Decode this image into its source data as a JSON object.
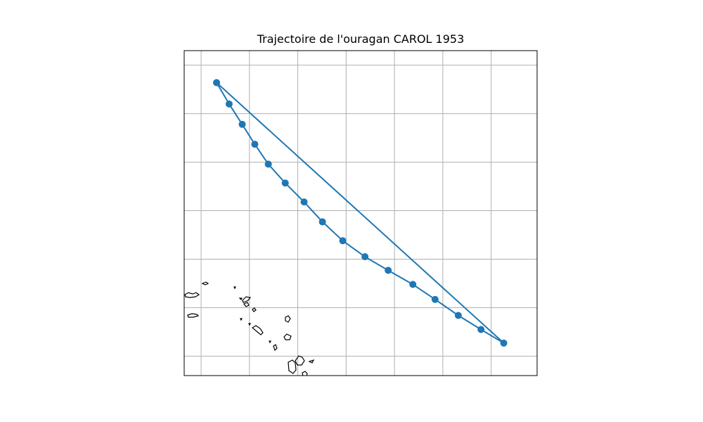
{
  "title": "Trajectoire de l'ouragan CAROL 1953",
  "colors": {
    "track": "#1f77b4",
    "grid": "#b0b0b0",
    "coast": "#000000",
    "frame": "#000000"
  },
  "chart_data": {
    "type": "map-track",
    "grid": true,
    "x_range": [
      -62.1,
      -54.8
    ],
    "y_range": [
      15.6,
      22.3
    ],
    "gridlines_x": [
      -61.75,
      -60.75,
      -59.75,
      -58.75,
      -57.75,
      -56.75,
      -55.75
    ],
    "gridlines_y": [
      16.0,
      17.0,
      18.0,
      19.0,
      20.0,
      21.0,
      22.0
    ],
    "track": [
      {
        "lon": -61.43,
        "lat": 21.64
      },
      {
        "lon": -61.17,
        "lat": 21.2
      },
      {
        "lon": -60.9,
        "lat": 20.78
      },
      {
        "lon": -60.64,
        "lat": 20.37
      },
      {
        "lon": -60.36,
        "lat": 19.96
      },
      {
        "lon": -60.01,
        "lat": 19.57
      },
      {
        "lon": -59.62,
        "lat": 19.18
      },
      {
        "lon": -59.24,
        "lat": 18.77
      },
      {
        "lon": -58.82,
        "lat": 18.38
      },
      {
        "lon": -58.36,
        "lat": 18.05
      },
      {
        "lon": -57.88,
        "lat": 17.77
      },
      {
        "lon": -57.37,
        "lat": 17.48
      },
      {
        "lon": -56.91,
        "lat": 17.17
      },
      {
        "lon": -56.43,
        "lat": 16.84
      },
      {
        "lon": -55.96,
        "lat": 16.55
      },
      {
        "lon": -55.49,
        "lat": 16.27
      },
      {
        "lon": -61.43,
        "lat": 21.64
      }
    ]
  }
}
